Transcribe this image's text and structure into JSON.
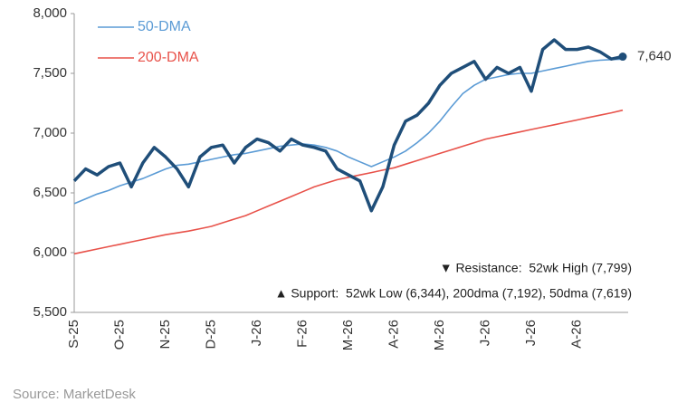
{
  "chart_data": {
    "type": "line",
    "categories": [
      "S-25",
      null,
      null,
      null,
      "O-25",
      null,
      null,
      null,
      "N-25",
      null,
      null,
      null,
      "D-25",
      null,
      null,
      null,
      "J-26",
      null,
      null,
      null,
      "F-26",
      null,
      null,
      null,
      "M-26",
      null,
      null,
      null,
      "A-26",
      null,
      null,
      null,
      "M-26",
      null,
      null,
      null,
      "J-26",
      null,
      null,
      null,
      "J-26",
      null,
      null,
      null,
      "A-26",
      null,
      null,
      null,
      null
    ],
    "series": [
      {
        "color": "#1f4e79",
        "values": [
          6600,
          6700,
          6650,
          6720,
          6750,
          6550,
          6750,
          6880,
          6800,
          6700,
          6550,
          6800,
          6880,
          6900,
          6750,
          6880,
          6950,
          6920,
          6850,
          6950,
          6900,
          6880,
          6850,
          6700,
          6650,
          6600,
          6350,
          6550,
          6900,
          7100,
          7150,
          7250,
          7400,
          7500,
          7550,
          7600,
          7450,
          7550,
          7500,
          7550,
          7350,
          7700,
          7780,
          7700,
          7700,
          7720,
          7680,
          7620,
          7640
        ],
        "value_labels": [
          null,
          null,
          null,
          null,
          null,
          null,
          null,
          null,
          null,
          null,
          null,
          null,
          null,
          null,
          null,
          null,
          null,
          null,
          null,
          null,
          null,
          null,
          null,
          null,
          null,
          null,
          null,
          null,
          null,
          null,
          null,
          null,
          null,
          null,
          null,
          null,
          null,
          null,
          null,
          null,
          null,
          null,
          null,
          null,
          null,
          null,
          null,
          null,
          "7,640"
        ]
      },
      {
        "name": "50-DMA",
        "color": "#5b9bd5",
        "values": [
          6410,
          6450,
          6490,
          6520,
          6560,
          6590,
          6620,
          6660,
          6700,
          6730,
          6740,
          6760,
          6780,
          6800,
          6820,
          6830,
          6850,
          6870,
          6890,
          6900,
          6910,
          6900,
          6880,
          6850,
          6800,
          6760,
          6720,
          6760,
          6800,
          6850,
          6920,
          7000,
          7100,
          7220,
          7330,
          7400,
          7450,
          7470,
          7490,
          7500,
          7500,
          7520,
          7540,
          7560,
          7580,
          7600,
          7610,
          7615,
          7619
        ]
      },
      {
        "name": "200-DMA",
        "color": "#e8524a",
        "values": [
          5990,
          6010,
          6030,
          6050,
          6070,
          6090,
          6110,
          6130,
          6150,
          6165,
          6180,
          6200,
          6220,
          6250,
          6280,
          6310,
          6350,
          6390,
          6430,
          6470,
          6510,
          6550,
          6580,
          6610,
          6630,
          6650,
          6670,
          6690,
          6710,
          6740,
          6770,
          6800,
          6830,
          6860,
          6890,
          6920,
          6950,
          6970,
          6990,
          7010,
          7030,
          7050,
          7070,
          7090,
          7110,
          7130,
          7150,
          7170,
          7192
        ]
      }
    ],
    "ylim": [
      5500,
      8000
    ],
    "yticks": [
      {
        "value": 5500,
        "label": "5,500"
      },
      {
        "value": 6000,
        "label": "6,000"
      },
      {
        "value": 6500,
        "label": "6,500"
      },
      {
        "value": 7000,
        "label": "7,000"
      },
      {
        "value": 7500,
        "label": "7,500"
      },
      {
        "value": 8000,
        "label": "8,000"
      }
    ],
    "grid": false,
    "legend": "top-left",
    "annotations": [
      "▼ Resistance:  52wk High (7,799)",
      "▲ Support:  52wk Low (6,344), 200dma (7,192), 50dma (7,619)"
    ],
    "source": "Source: MarketDesk"
  }
}
